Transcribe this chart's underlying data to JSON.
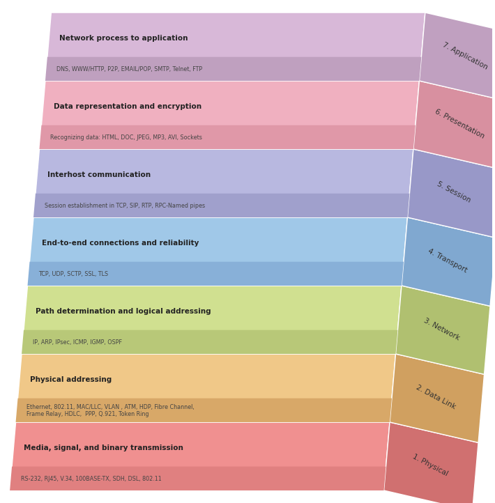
{
  "layers": [
    {
      "number": 7,
      "name": "Application",
      "title": "Network process to application",
      "subtitle": "DNS, WWW/HTTP, P2P, EMAIL/POP, SMTP, Telnet, FTP",
      "top_color": "#d8b8d8",
      "side_color": "#c0a0c0",
      "bar_color": "#bfa0bf",
      "label_color": "#444444"
    },
    {
      "number": 6,
      "name": "Presentation",
      "title": "Data representation and encryption",
      "subtitle": "Recognizing data: HTML, DOC, JPEG, MP3, AVI, Sockets",
      "top_color": "#f0b0c0",
      "side_color": "#d890a0",
      "bar_color": "#e098a8",
      "label_color": "#444444"
    },
    {
      "number": 5,
      "name": "Session",
      "title": "Interhost communication",
      "subtitle": "Session establishment in TCP, SIP, RTP, RPC-Named pipes",
      "top_color": "#b8b8e0",
      "side_color": "#9898c8",
      "bar_color": "#a0a0cc",
      "label_color": "#444444"
    },
    {
      "number": 4,
      "name": "Transport",
      "title": "End-to-end connections and reliability",
      "subtitle": "TCP, UDP, SCTP, SSL, TLS",
      "top_color": "#a0c8e8",
      "side_color": "#80a8d0",
      "bar_color": "#88b0d8",
      "label_color": "#444444"
    },
    {
      "number": 3,
      "name": "Network",
      "title": "Path determination and logical addressing",
      "subtitle": "IP, ARP, IPsec, ICMP, IGMP, OSPF",
      "top_color": "#d0e090",
      "side_color": "#b0c070",
      "bar_color": "#b8c878",
      "label_color": "#444444"
    },
    {
      "number": 2,
      "name": "Data Link",
      "title": "Physical addressing",
      "subtitle": "Ethernet, 802.11, MAC/LLC, VLAN , ATM, HDP, Fibre Channel,\nFrame Relay, HDLC,  PPP, Q.921, Token Ring",
      "top_color": "#f0c888",
      "side_color": "#d0a060",
      "bar_color": "#d8a868",
      "label_color": "#444444"
    },
    {
      "number": 1,
      "name": "Physical",
      "title": "Media, signal, and binary transmission",
      "subtitle": "RS-232, RJ45, V.34, 100BASE-TX, SDH, DSL, 802.11",
      "top_color": "#f09090",
      "side_color": "#d07070",
      "bar_color": "#e08080",
      "label_color": "#444444"
    }
  ],
  "background_color": "#ffffff",
  "figsize": [
    7.1,
    7.22
  ],
  "dpi": 100
}
